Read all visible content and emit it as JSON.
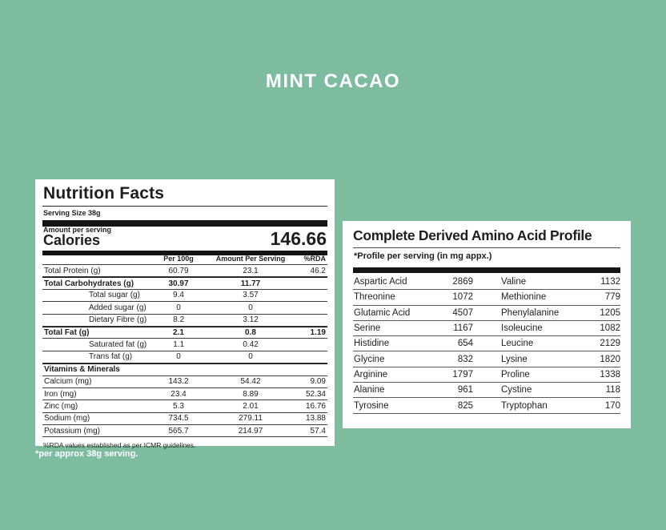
{
  "page": {
    "title": "MINT CACAO",
    "footnote": "*per approx 38g serving.",
    "background_color": "#7dbc9e",
    "text_color": "#1f1e1c"
  },
  "nutrition_facts": {
    "title": "Nutrition Facts",
    "serving_size": "Serving Size 38g",
    "amount_per_serving_label": "Amount per serving",
    "calories_label": "Calories",
    "calories_value": "146.66",
    "columns": [
      "Per 100g",
      "Amount Per Serving",
      "%RDA"
    ],
    "rows": [
      {
        "label": "Total Protein (g)",
        "per100g": "60.79",
        "per_serving": "23.1",
        "rda": "46.2",
        "style": ""
      },
      {
        "label": "Total Carbohydrates (g)",
        "per100g": "30.97",
        "per_serving": "11.77",
        "rda": "",
        "style": "bold thick"
      },
      {
        "label": "Total sugar (g)",
        "per100g": "9.4",
        "per_serving": "3.57",
        "rda": "",
        "style": "indent"
      },
      {
        "label": "Added sugar (g)",
        "per100g": "0",
        "per_serving": "0",
        "rda": "",
        "style": "indent"
      },
      {
        "label": "Dietary Fibre (g)",
        "per100g": "8.2",
        "per_serving": "3.12",
        "rda": "",
        "style": "indent"
      },
      {
        "label": "Total Fat (g)",
        "per100g": "2.1",
        "per_serving": "0.8",
        "rda": "1.19",
        "style": "bold thick"
      },
      {
        "label": "Saturated fat (g)",
        "per100g": "1.1",
        "per_serving": "0.42",
        "rda": "",
        "style": "indent"
      },
      {
        "label": "Trans fat (g)",
        "per100g": "0",
        "per_serving": "0",
        "rda": "",
        "style": "indent"
      },
      {
        "label": "Vitamins & Minerals",
        "per100g": "",
        "per_serving": "",
        "rda": "",
        "style": "bold thick"
      },
      {
        "label": "Calcium (mg)",
        "per100g": "143.2",
        "per_serving": "54.42",
        "rda": "9.09",
        "style": ""
      },
      {
        "label": "Iron (mg)",
        "per100g": "23.4",
        "per_serving": "8.89",
        "rda": "52.34",
        "style": ""
      },
      {
        "label": "Zinc (mg)",
        "per100g": "5.3",
        "per_serving": "2.01",
        "rda": "16.76",
        "style": ""
      },
      {
        "label": "Sodium (mg)",
        "per100g": "734.5",
        "per_serving": "279.11",
        "rda": "13.88",
        "style": ""
      },
      {
        "label": "Potassium (mg)",
        "per100g": "565.7",
        "per_serving": "214.97",
        "rda": "57.4",
        "style": ""
      }
    ],
    "footer": "%RDA values established as per ICMR guidelines."
  },
  "amino_profile": {
    "title": "Complete Derived Amino Acid Profile",
    "subtitle": "*Profile per serving (in mg appx.)",
    "rows": [
      {
        "left_name": "Aspartic Acid",
        "left_value": "2869",
        "right_name": "Valine",
        "right_value": "1132"
      },
      {
        "left_name": "Threonine",
        "left_value": "1072",
        "right_name": "Methionine",
        "right_value": "779"
      },
      {
        "left_name": "Glutamic Acid",
        "left_value": "4507",
        "right_name": "Phenylalanine",
        "right_value": "1205"
      },
      {
        "left_name": "Serine",
        "left_value": "1167",
        "right_name": "Isoleucine",
        "right_value": "1082"
      },
      {
        "left_name": "Histidine",
        "left_value": "654",
        "right_name": "Leucine",
        "right_value": "2129"
      },
      {
        "left_name": "Glycine",
        "left_value": "832",
        "right_name": "Lysine",
        "right_value": "1820"
      },
      {
        "left_name": "Arginine",
        "left_value": "1797",
        "right_name": "Proline",
        "right_value": "1338"
      },
      {
        "left_name": "Alanine",
        "left_value": "961",
        "right_name": "Cystine",
        "right_value": "118"
      },
      {
        "left_name": "Tyrosine",
        "left_value": "825",
        "right_name": "Tryptophan",
        "right_value": "170"
      }
    ]
  }
}
